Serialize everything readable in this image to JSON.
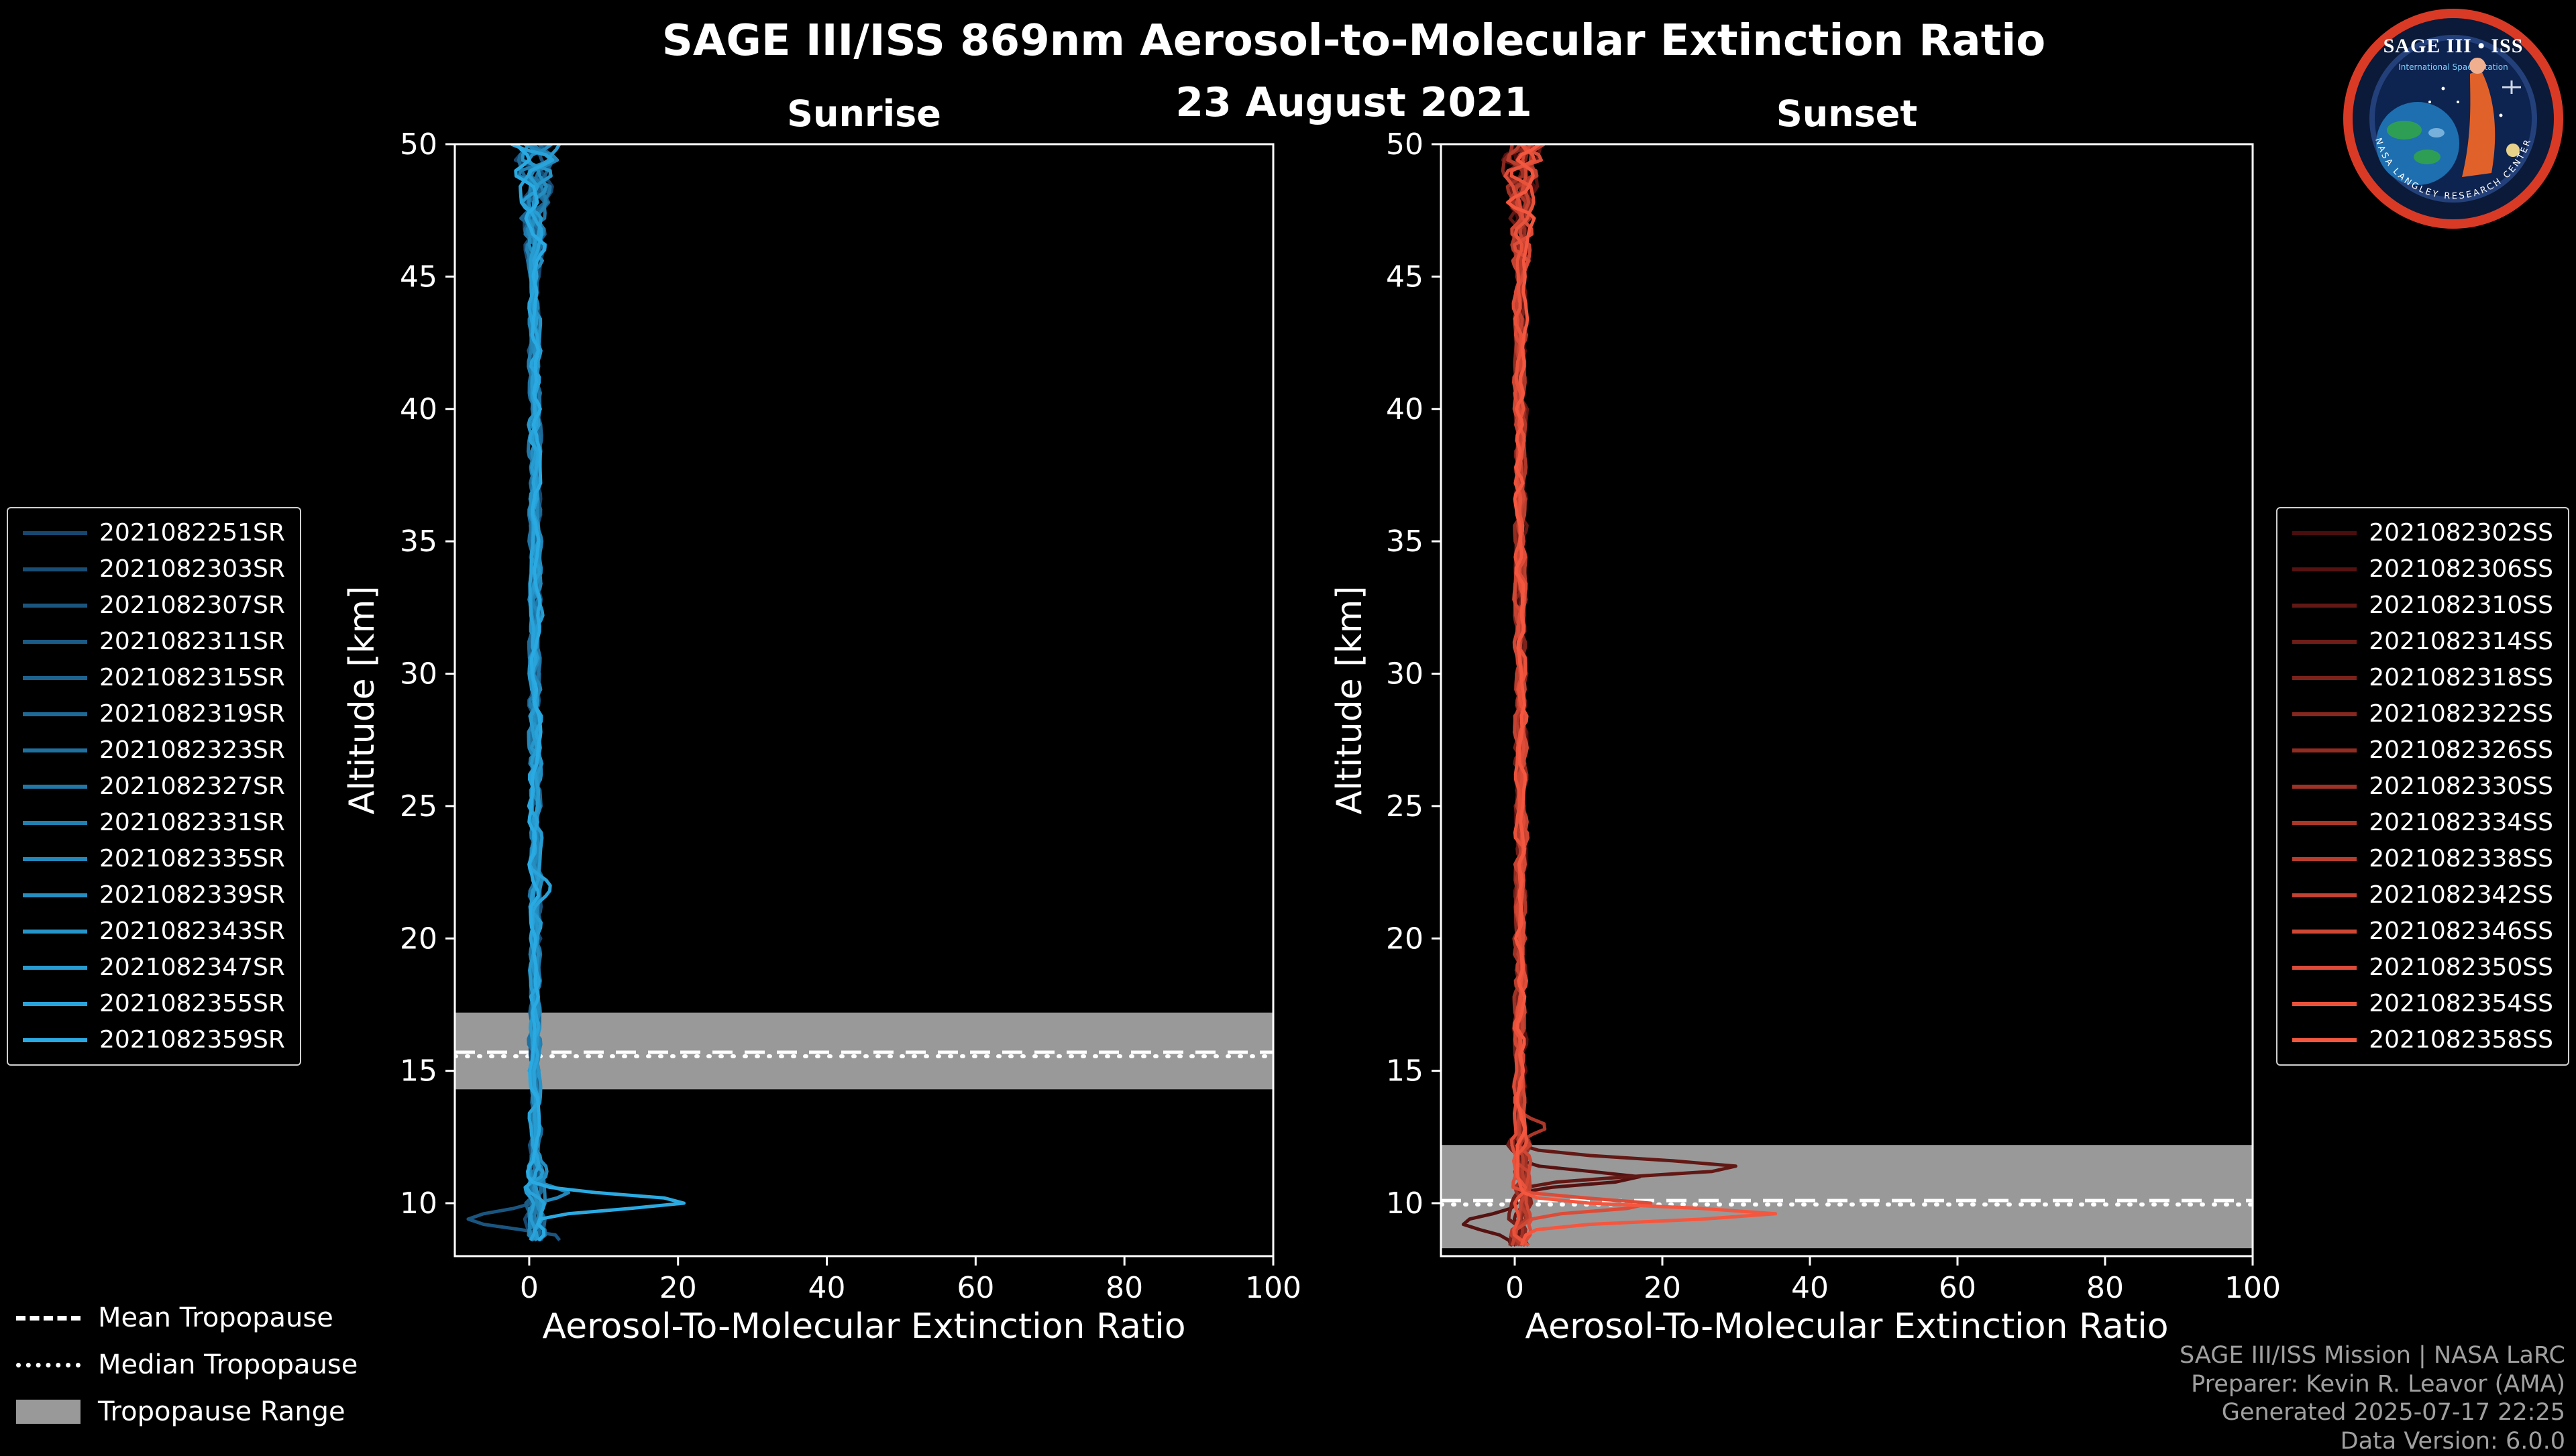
{
  "header": {
    "title": "SAGE III/ISS 869nm Aerosol-to-Molecular Extinction Ratio",
    "date": "23 August 2021"
  },
  "logo": {
    "title": "SAGE III • ISS",
    "subtitle": "International Space Station",
    "ring_text": "NASA LANGLEY RESEARCH CENTER"
  },
  "tropopause_legend": {
    "mean": "Mean Tropopause",
    "median": "Median Tropopause",
    "range": "Tropopause Range"
  },
  "footer": {
    "lines": [
      "SAGE III/ISS Mission | NASA LaRC",
      "Preparer: Kevin R. Leavor (AMA)",
      "Generated 2025-07-17 22:25",
      "Data Version: 6.0.0"
    ]
  },
  "colors": {
    "background": "#000000",
    "axis": "#ffffff",
    "band": "#999999",
    "credit": "#a0a0a0"
  },
  "chart_data": [
    {
      "type": "line",
      "panel": "sunrise",
      "title": "Sunrise",
      "xlabel": "Aerosol-To-Molecular Extinction Ratio",
      "ylabel": "Altitude [km]",
      "xlim": [
        -10,
        100
      ],
      "ylim": [
        8.0,
        50
      ],
      "xticks": [
        0,
        20,
        40,
        60,
        80,
        100
      ],
      "yticks": [
        10,
        15,
        20,
        25,
        30,
        35,
        40,
        45,
        50
      ],
      "grid": false,
      "legend_position": "outside-left",
      "tropopause": {
        "mean": 15.7,
        "median": 15.55,
        "range": [
          14.3,
          17.2
        ]
      },
      "profile": {
        "alt_bottom": 8.4,
        "step": 0.2,
        "base": 0.8,
        "jitter": 0.7,
        "low_spread_below": 11.5,
        "low_spread_extra": 0.7,
        "top_jitter_start": 45,
        "top_jitter_max": 3.2
      },
      "spikes": [
        {
          "series": 14,
          "alt": 10.05,
          "peak": 21.5,
          "width": 0.55
        },
        {
          "series": 2,
          "alt": 9.4,
          "peak": -9.0,
          "width": 0.6
        },
        {
          "series": 2,
          "alt": 8.75,
          "peak": 4.0,
          "width": 0.4
        },
        {
          "series": 9,
          "alt": 10.35,
          "peak": 4.5,
          "width": 0.45
        },
        {
          "series": 13,
          "alt": 21.8,
          "peak": 2.5,
          "width": 0.7
        }
      ],
      "series": [
        {
          "label": "2021082251SR",
          "color": "#17476e"
        },
        {
          "label": "2021082303SR",
          "color": "#184e76"
        },
        {
          "label": "2021082307SR",
          "color": "#1a557f"
        },
        {
          "label": "2021082311SR",
          "color": "#1b5c87"
        },
        {
          "label": "2021082315SR",
          "color": "#1c638f"
        },
        {
          "label": "2021082319SR",
          "color": "#1e6a97"
        },
        {
          "label": "2021082323SR",
          "color": "#1f71a0"
        },
        {
          "label": "2021082327SR",
          "color": "#2178a8"
        },
        {
          "label": "2021082331SR",
          "color": "#2280b0"
        },
        {
          "label": "2021082335SR",
          "color": "#2387b9"
        },
        {
          "label": "2021082339SR",
          "color": "#258ec1"
        },
        {
          "label": "2021082343SR",
          "color": "#2695c9"
        },
        {
          "label": "2021082347SR",
          "color": "#279cd1"
        },
        {
          "label": "2021082355SR",
          "color": "#29a3da"
        },
        {
          "label": "2021082359SR",
          "color": "#2aaae2"
        }
      ]
    },
    {
      "type": "line",
      "panel": "sunset",
      "title": "Sunset",
      "xlabel": "Aerosol-To-Molecular Extinction Ratio",
      "ylabel": "Altitude [km]",
      "xlim": [
        -10,
        100
      ],
      "ylim": [
        8.0,
        50
      ],
      "xticks": [
        0,
        20,
        40,
        60,
        80,
        100
      ],
      "yticks": [
        10,
        15,
        20,
        25,
        30,
        35,
        40,
        45,
        50
      ],
      "grid": false,
      "legend_position": "outside-right",
      "tropopause": {
        "mean": 10.1,
        "median": 9.95,
        "range": [
          8.3,
          12.2
        ]
      },
      "profile": {
        "alt_bottom": 8.3,
        "step": 0.2,
        "base": 0.8,
        "jitter": 0.7,
        "low_spread_below": 12.5,
        "low_spread_extra": 0.8,
        "top_jitter_start": 45,
        "top_jitter_max": 3.2
      },
      "spikes": [
        {
          "series": 2,
          "alt": 11.35,
          "peak": 28.0,
          "width": 0.6
        },
        {
          "series": 1,
          "alt": 10.95,
          "peak": 17.0,
          "width": 0.5
        },
        {
          "series": 1,
          "alt": 9.3,
          "peak": -8.0,
          "width": 0.55
        },
        {
          "series": 14,
          "alt": 9.6,
          "peak": 33.0,
          "width": 0.5
        },
        {
          "series": 12,
          "alt": 9.95,
          "peak": 18.0,
          "width": 0.45
        },
        {
          "series": 8,
          "alt": 12.9,
          "peak": 3.5,
          "width": 0.5
        }
      ],
      "series": [
        {
          "label": "2021082302SS",
          "color": "#4a0d0d"
        },
        {
          "label": "2021082306SS",
          "color": "#561211"
        },
        {
          "label": "2021082310SS",
          "color": "#621814"
        },
        {
          "label": "2021082314SS",
          "color": "#6e1d18"
        },
        {
          "label": "2021082318SS",
          "color": "#7b221b"
        },
        {
          "label": "2021082322SS",
          "color": "#87271f"
        },
        {
          "label": "2021082326SS",
          "color": "#932d22"
        },
        {
          "label": "2021082330SS",
          "color": "#9f3226"
        },
        {
          "label": "2021082334SS",
          "color": "#ab3729"
        },
        {
          "label": "2021082338SS",
          "color": "#b73d2d"
        },
        {
          "label": "2021082342SS",
          "color": "#c44231"
        },
        {
          "label": "2021082346SS",
          "color": "#d04734"
        },
        {
          "label": "2021082350SS",
          "color": "#dc4c38"
        },
        {
          "label": "2021082354SS",
          "color": "#e8523b"
        },
        {
          "label": "2021082358SS",
          "color": "#f4573f"
        }
      ]
    }
  ]
}
